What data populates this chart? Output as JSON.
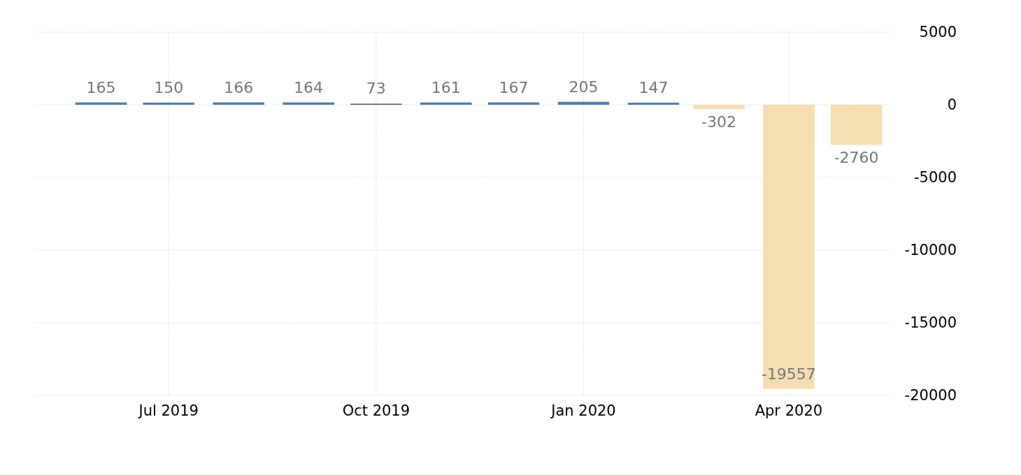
{
  "chart_data": {
    "type": "bar",
    "x": [
      "2019-06",
      "2019-07",
      "2019-08",
      "2019-09",
      "2019-10",
      "2019-11",
      "2019-12",
      "2020-01",
      "2020-02",
      "2020-03",
      "2020-04",
      "2020-05"
    ],
    "values": [
      165,
      150,
      166,
      164,
      73,
      161,
      167,
      205,
      147,
      -302,
      -19557,
      -2760
    ],
    "colors": [
      "#4f7fab",
      "#4f7fab",
      "#4f7fab",
      "#4f7fab",
      "#555555",
      "#4f7fab",
      "#4f7fab",
      "#4f7fab",
      "#4f7fab",
      "#f5deb3",
      "#f5deb3",
      "#f5deb3"
    ],
    "data_labels": true,
    "xlim": [
      "2019-05-03",
      "2020-05-16"
    ],
    "xticks": [
      {
        "value": "2019-07",
        "label": "Jul 2019"
      },
      {
        "value": "2019-10",
        "label": "Oct 2019"
      },
      {
        "value": "2020-01",
        "label": "Jan 2020"
      },
      {
        "value": "2020-04",
        "label": "Apr 2020"
      }
    ],
    "ylim": [
      -20000,
      5000
    ],
    "yticks": [
      5000,
      0,
      -5000,
      -10000,
      -15000,
      -20000
    ],
    "grid": true
  }
}
